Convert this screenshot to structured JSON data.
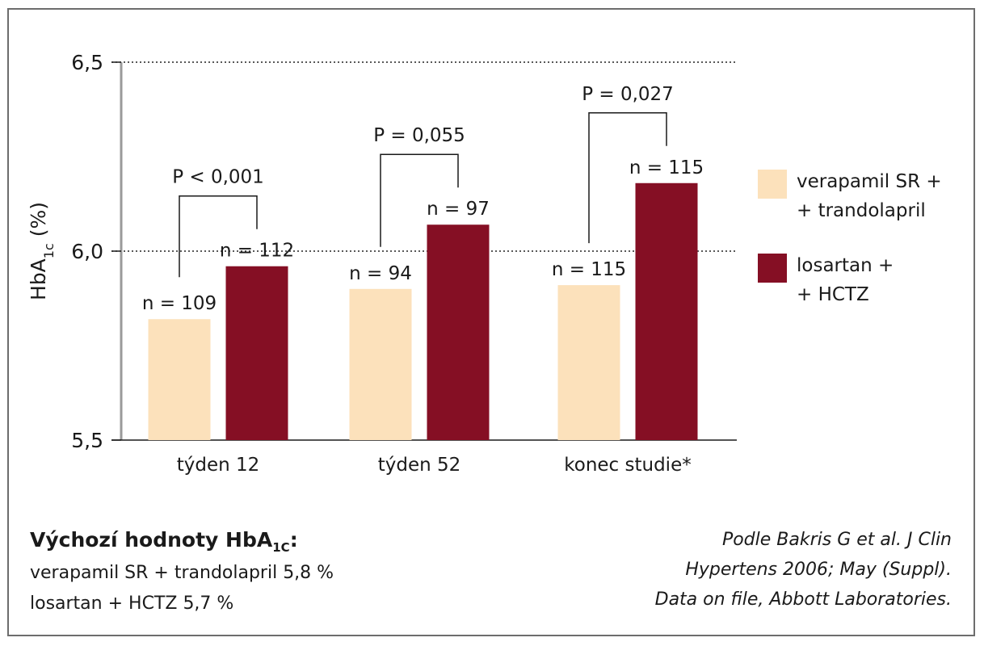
{
  "colors": {
    "verapamil": "#FCE1BB",
    "losartan": "#850F24"
  },
  "chart_data": {
    "type": "bar",
    "ylabel_main": "HbA",
    "ylabel_sub": "1c",
    "ylabel_unit": " (%)",
    "ylim": [
      5.5,
      6.5
    ],
    "yticks": [
      5.5,
      6.0,
      6.5
    ],
    "ytick_labels": [
      "5,5",
      "6,0",
      "6,5"
    ],
    "gridlines": [
      6.0,
      6.5
    ],
    "categories": [
      "týden 12",
      "týden 52",
      "konec studie*"
    ],
    "series": [
      {
        "name_line1": "verapamil SR +",
        "name_line2": "+ trandolapril",
        "values": [
          5.82,
          5.9,
          5.91
        ],
        "n_labels": [
          "n = 109",
          "n = 94",
          "n = 115"
        ]
      },
      {
        "name_line1": "losartan +",
        "name_line2": "+ HCTZ",
        "values": [
          5.96,
          6.07,
          6.18
        ],
        "n_labels": [
          "n = 112",
          "n = 97",
          "n = 115"
        ]
      }
    ],
    "pvalues": [
      "P < 0,001",
      "P = 0,055",
      "P = 0,027"
    ],
    "legend_position": "right"
  },
  "baseline": {
    "title_main": "Výchozí hodnoty HbA",
    "title_sub": "1C",
    "title_end": ":",
    "line1": "verapamil SR + trandolapril 5,8 %",
    "line2": "losartan + HCTZ 5,7 %"
  },
  "source": {
    "line1": "Podle Bakris G et al. J Clin",
    "line2": "Hypertens 2006; May (Suppl).",
    "line3": "Data on file, Abbott Laboratories."
  }
}
